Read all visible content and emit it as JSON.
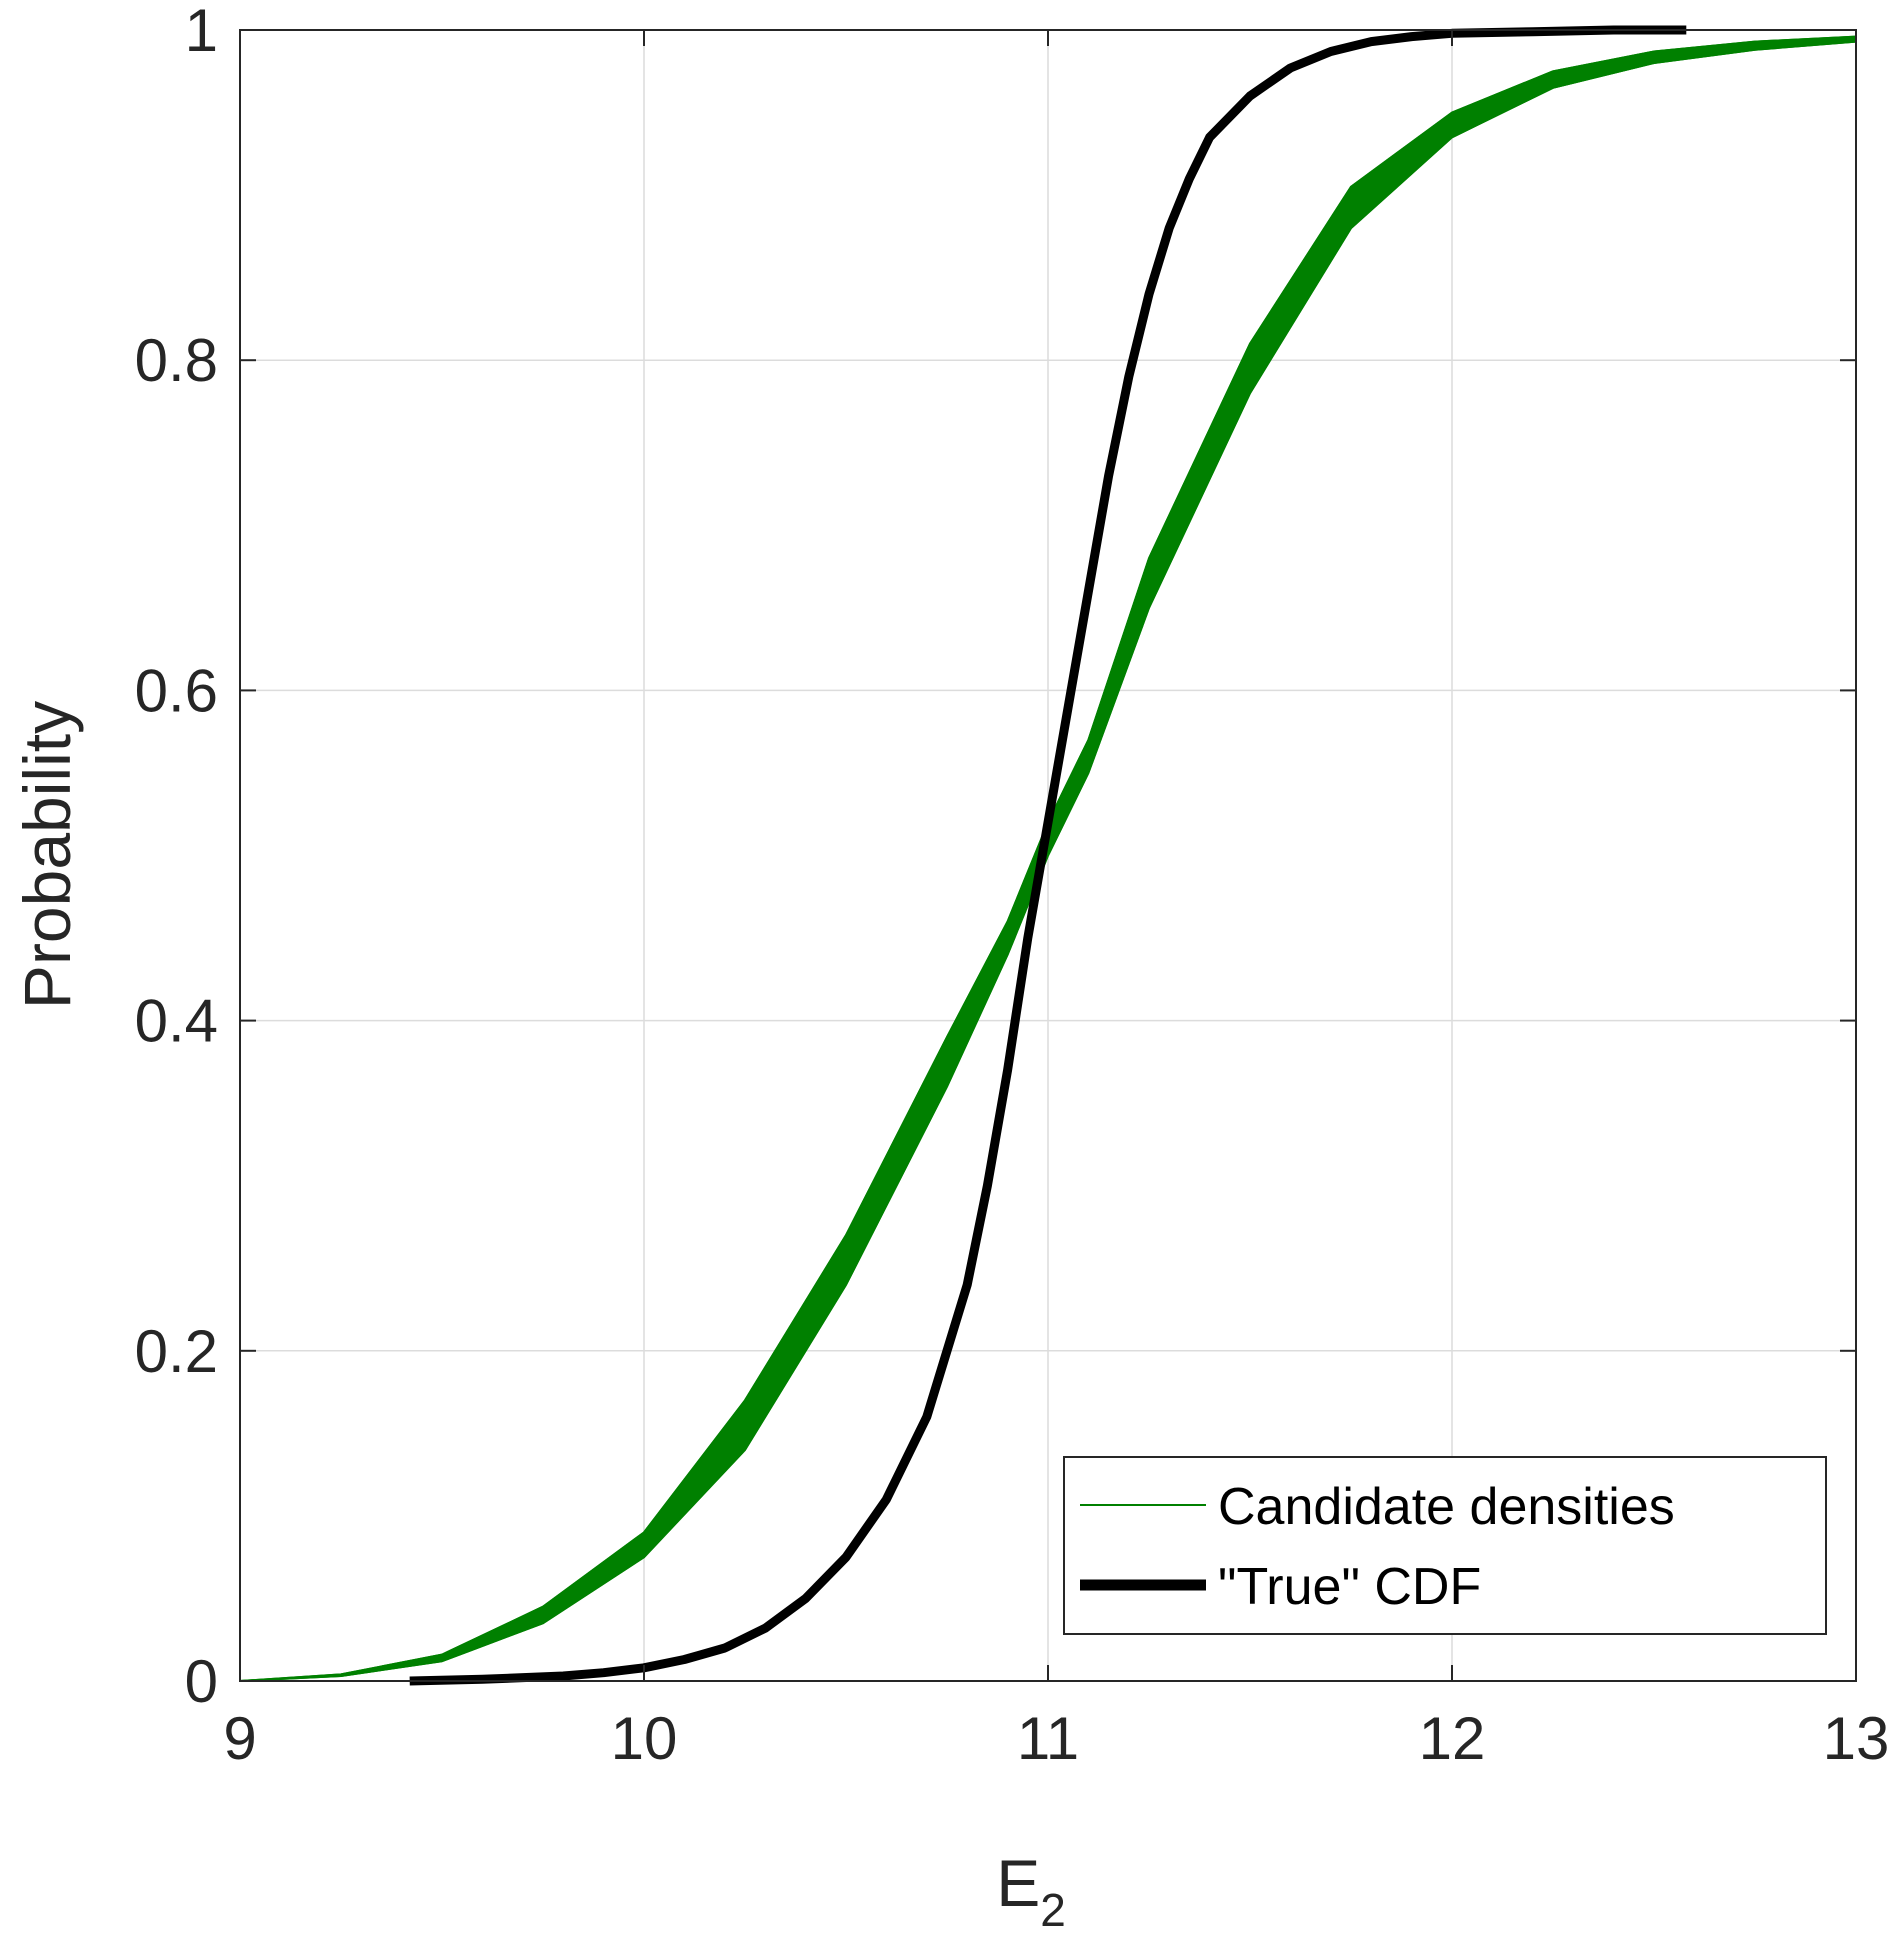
{
  "chart_data": {
    "type": "line",
    "xlabel": "E",
    "xlabel_subscript": "2",
    "ylabel": "Probability",
    "xlim": [
      9,
      13
    ],
    "ylim": [
      0,
      1
    ],
    "xticks": [
      9,
      10,
      11,
      12,
      13
    ],
    "xtick_labels": [
      "9",
      "10",
      "11",
      "12",
      "13"
    ],
    "yticks": [
      0,
      0.2,
      0.4,
      0.6,
      0.8,
      1
    ],
    "ytick_labels": [
      "0",
      "0.2",
      "0.4",
      "0.6",
      "0.8",
      "1"
    ],
    "grid": true,
    "legend_position": "bottom-right",
    "series": [
      {
        "name": "Candidate densities",
        "color": "#008000",
        "style": "band",
        "x_lower_edge": [
          9.0,
          9.25,
          9.5,
          9.75,
          10.0,
          10.25,
          10.5,
          10.75,
          10.9,
          11.0,
          11.1,
          11.25,
          11.5,
          11.75,
          12.0,
          12.25,
          12.5,
          12.75,
          13.0
        ],
        "y_lower_edge": [
          0.0,
          0.003,
          0.012,
          0.035,
          0.075,
          0.14,
          0.24,
          0.36,
          0.44,
          0.5,
          0.55,
          0.65,
          0.78,
          0.88,
          0.935,
          0.965,
          0.98,
          0.988,
          0.993
        ],
        "x_upper_edge": [
          9.0,
          9.25,
          9.5,
          9.75,
          10.0,
          10.25,
          10.5,
          10.75,
          10.9,
          11.0,
          11.1,
          11.25,
          11.5,
          11.75,
          12.0,
          12.25,
          12.5,
          12.75,
          13.0
        ],
        "y_upper_edge": [
          0.0,
          0.004,
          0.016,
          0.045,
          0.09,
          0.17,
          0.27,
          0.39,
          0.46,
          0.52,
          0.57,
          0.68,
          0.81,
          0.905,
          0.95,
          0.975,
          0.987,
          0.993,
          0.996
        ]
      },
      {
        "name": "\"True\" CDF",
        "color": "#000000",
        "style": "line",
        "x": [
          9.42,
          9.6,
          9.8,
          9.9,
          10.0,
          10.1,
          10.2,
          10.3,
          10.4,
          10.5,
          10.6,
          10.7,
          10.75,
          10.8,
          10.85,
          10.9,
          10.95,
          11.0,
          11.05,
          11.1,
          11.15,
          11.2,
          11.25,
          11.3,
          11.35,
          11.4,
          11.5,
          11.6,
          11.7,
          11.8,
          11.9,
          12.0,
          12.2,
          12.4,
          12.58
        ],
        "y": [
          0.0,
          0.001,
          0.003,
          0.005,
          0.008,
          0.013,
          0.02,
          0.032,
          0.05,
          0.075,
          0.11,
          0.16,
          0.2,
          0.24,
          0.3,
          0.37,
          0.45,
          0.52,
          0.59,
          0.66,
          0.73,
          0.79,
          0.84,
          0.88,
          0.91,
          0.935,
          0.96,
          0.977,
          0.987,
          0.993,
          0.996,
          0.998,
          0.999,
          1.0,
          1.0
        ]
      }
    ]
  }
}
